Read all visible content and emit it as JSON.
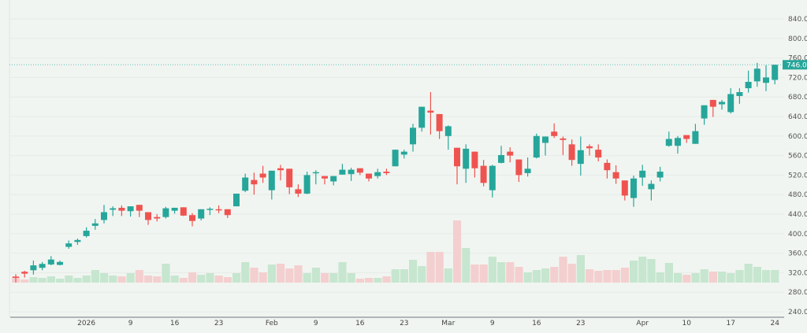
{
  "chart_data": {
    "type": "candlestick",
    "title": "",
    "xlabel": "",
    "ylabel": "",
    "ylim": [
      240,
      840
    ],
    "y_ticks": [
      "240.0",
      "280.0",
      "320.0",
      "360.0",
      "400.0",
      "440.0",
      "480.0",
      "520.0",
      "560.0",
      "600.0",
      "640.0",
      "680.0",
      "720.0",
      "760.0",
      "800.0",
      "840.0"
    ],
    "x_ticks": [
      {
        "label": "2026",
        "index": 8
      },
      {
        "label": "9",
        "index": 13
      },
      {
        "label": "16",
        "index": 18
      },
      {
        "label": "23",
        "index": 23
      },
      {
        "label": "Feb",
        "index": 29
      },
      {
        "label": "9",
        "index": 34
      },
      {
        "label": "16",
        "index": 39
      },
      {
        "label": "23",
        "index": 44
      },
      {
        "label": "Mar",
        "index": 49
      },
      {
        "label": "9",
        "index": 54
      },
      {
        "label": "16",
        "index": 59
      },
      {
        "label": "23",
        "index": 64
      },
      {
        "label": "Apr",
        "index": 71
      },
      {
        "label": "10",
        "index": 76
      },
      {
        "label": "17",
        "index": 81
      },
      {
        "label": "24",
        "index": 86
      }
    ],
    "ohlc_fields": [
      "open",
      "high",
      "low",
      "close"
    ],
    "ohlc": [
      [
        312,
        317,
        300,
        311
      ],
      [
        322,
        324,
        310,
        318
      ],
      [
        325,
        345,
        316,
        335
      ],
      [
        330,
        342,
        325,
        338
      ],
      [
        337,
        354,
        335,
        347
      ],
      [
        336,
        345,
        335,
        342
      ],
      [
        373,
        386,
        369,
        380
      ],
      [
        383,
        390,
        377,
        387
      ],
      [
        395,
        413,
        392,
        406
      ],
      [
        416,
        430,
        408,
        421
      ],
      [
        428,
        459,
        421,
        444
      ],
      [
        449,
        456,
        436,
        452
      ],
      [
        453,
        458,
        436,
        447
      ],
      [
        446,
        456,
        435,
        456
      ],
      [
        459,
        459,
        434,
        447
      ],
      [
        444,
        444,
        418,
        428
      ],
      [
        434,
        440,
        425,
        431
      ],
      [
        434,
        455,
        431,
        452
      ],
      [
        447,
        453,
        441,
        453
      ],
      [
        454,
        454,
        436,
        437
      ],
      [
        438,
        442,
        415,
        426
      ],
      [
        431,
        450,
        427,
        450
      ],
      [
        450,
        454,
        438,
        451
      ],
      [
        450,
        458,
        442,
        449
      ],
      [
        450,
        450,
        432,
        438
      ],
      [
        456,
        482,
        456,
        482
      ],
      [
        488,
        523,
        485,
        515
      ],
      [
        510,
        525,
        480,
        501
      ],
      [
        523,
        539,
        504,
        515
      ],
      [
        489,
        529,
        470,
        529
      ],
      [
        534,
        541,
        509,
        530
      ],
      [
        533,
        533,
        481,
        495
      ],
      [
        491,
        501,
        475,
        482
      ],
      [
        482,
        527,
        481,
        520
      ],
      [
        524,
        530,
        501,
        526
      ],
      [
        518,
        518,
        501,
        513
      ],
      [
        507,
        518,
        499,
        518
      ],
      [
        521,
        543,
        521,
        531
      ],
      [
        522,
        535,
        508,
        531
      ],
      [
        534,
        534,
        520,
        525
      ],
      [
        523,
        523,
        507,
        513
      ],
      [
        518,
        533,
        513,
        526
      ],
      [
        527,
        533,
        520,
        524
      ],
      [
        538,
        572,
        538,
        572
      ],
      [
        562,
        572,
        554,
        568
      ],
      [
        583,
        625,
        568,
        617
      ],
      [
        617,
        660,
        609,
        660
      ],
      [
        652,
        690,
        603,
        648
      ],
      [
        645,
        645,
        594,
        610
      ],
      [
        600,
        622,
        572,
        620
      ],
      [
        576,
        576,
        501,
        538
      ],
      [
        533,
        583,
        504,
        574
      ],
      [
        568,
        568,
        515,
        534
      ],
      [
        539,
        551,
        497,
        504
      ],
      [
        489,
        541,
        474,
        539
      ],
      [
        545,
        580,
        544,
        561
      ],
      [
        568,
        577,
        546,
        560
      ],
      [
        552,
        552,
        506,
        520
      ],
      [
        524,
        556,
        517,
        533
      ],
      [
        556,
        605,
        554,
        600
      ],
      [
        586,
        599,
        560,
        599
      ],
      [
        609,
        626,
        596,
        600
      ],
      [
        595,
        599,
        561,
        592
      ],
      [
        583,
        593,
        539,
        551
      ],
      [
        543,
        599,
        519,
        571
      ],
      [
        579,
        583,
        560,
        575
      ],
      [
        572,
        583,
        548,
        556
      ],
      [
        545,
        552,
        513,
        530
      ],
      [
        526,
        540,
        502,
        513
      ],
      [
        509,
        509,
        468,
        478
      ],
      [
        473,
        519,
        455,
        513
      ],
      [
        515,
        541,
        498,
        529
      ],
      [
        491,
        509,
        468,
        502
      ],
      [
        515,
        537,
        507,
        527
      ],
      [
        580,
        609,
        578,
        594
      ],
      [
        580,
        600,
        564,
        596
      ],
      [
        602,
        602,
        586,
        594
      ],
      [
        584,
        625,
        584,
        610
      ],
      [
        636,
        663,
        623,
        663
      ],
      [
        674,
        674,
        639,
        660
      ],
      [
        665,
        674,
        654,
        670
      ],
      [
        649,
        698,
        646,
        686
      ],
      [
        682,
        698,
        666,
        690
      ],
      [
        698,
        734,
        689,
        711
      ],
      [
        712,
        750,
        701,
        738
      ],
      [
        709,
        745,
        692,
        720
      ],
      [
        715,
        746,
        706,
        746
      ]
    ],
    "volume_relative": [
      8,
      4,
      7,
      6,
      8,
      5,
      9,
      6,
      9,
      16,
      12,
      9,
      8,
      12,
      16,
      9,
      8,
      24,
      9,
      6,
      13,
      10,
      12,
      9,
      7,
      12,
      26,
      19,
      13,
      23,
      24,
      18,
      22,
      12,
      19,
      12,
      12,
      26,
      12,
      5,
      6,
      6,
      8,
      17,
      17,
      29,
      21,
      39,
      39,
      18,
      79,
      44,
      23,
      23,
      33,
      26,
      26,
      20,
      13,
      16,
      18,
      20,
      33,
      24,
      35,
      17,
      15,
      16,
      16,
      19,
      28,
      33,
      30,
      13,
      25,
      12,
      10,
      12,
      17,
      14,
      14,
      12,
      16,
      24,
      20,
      16,
      16
    ],
    "last_price": 746.0,
    "last_price_label": "746.0",
    "grid": true,
    "colors": {
      "up": "#26a69a",
      "down": "#ef5350",
      "volume_up": "#c6e6cf",
      "volume_down": "#f4cfcf",
      "background": "#f1f5f1"
    }
  }
}
